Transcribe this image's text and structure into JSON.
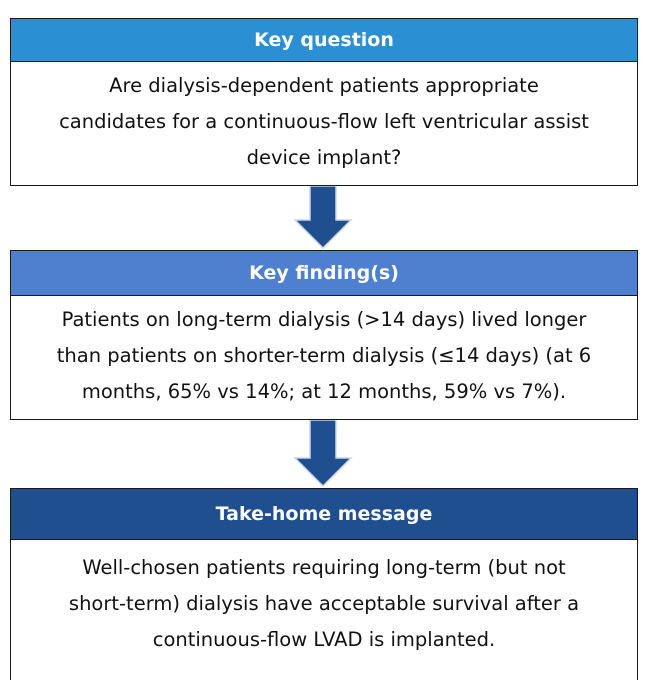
{
  "sections": [
    {
      "title": "Key question",
      "lines": [
        "Are dialysis-dependent patients appropriate",
        "candidates for a continuous-flow left ventricular assist",
        "device implant?"
      ]
    },
    {
      "title": "Key finding(s)",
      "lines": [
        "Patients on long-term dialysis (>14 days) lived longer",
        "than patients on shorter-term dialysis (≤14 days)  (at 6",
        "months, 65% vs 14%; at 12 months, 59% vs 7%)."
      ]
    },
    {
      "title": "Take-home message",
      "lines": [
        "Well-chosen patients requiring long-term (but not",
        "short-term) dialysis have acceptable survival after a",
        "continuous-flow LVAD is implanted."
      ]
    }
  ]
}
